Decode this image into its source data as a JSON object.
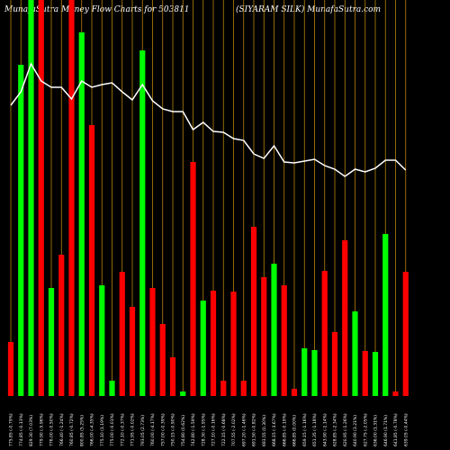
{
  "chart_data": {
    "type": "bar",
    "title_left": "MunafaSutra  Money Flow  Charts for 503811",
    "title_right": "(SIYARAM SILK) MunafaSutra.com",
    "colors": {
      "background": "#000000",
      "up": "#00ff00",
      "down": "#ff0000",
      "grid": "#b8860b",
      "line": "#ffffff"
    },
    "bars": [
      {
        "label": "775.85 (-0.79%)",
        "color": "down",
        "value": 60
      },
      {
        "label": "774.85 (-0.13%)",
        "color": "up",
        "value": 368
      },
      {
        "label": "829.30 (7.03%)",
        "color": "up",
        "value": 440
      },
      {
        "label": "779.90 (-5.96%)",
        "color": "down",
        "value": 440
      },
      {
        "label": "776.00 (-0.50%)",
        "color": "up",
        "value": 120
      },
      {
        "label": "766.40 (-1.24%)",
        "color": "down",
        "value": 157
      },
      {
        "label": "760.85 (-0.72%)",
        "color": "down",
        "value": 440
      },
      {
        "label": "800.85 (5.25%)",
        "color": "up",
        "value": 404
      },
      {
        "label": "766.00 (-4.35%)",
        "color": "down",
        "value": 301
      },
      {
        "label": "775.10 (1.19%)",
        "color": "up",
        "value": 123
      },
      {
        "label": "775.00 (-0.01%)",
        "color": "up",
        "value": 17
      },
      {
        "label": "772.10 (-0.37%)",
        "color": "down",
        "value": 138
      },
      {
        "label": "771.95 (-0.02%)",
        "color": "down",
        "value": 99
      },
      {
        "label": "793.05 (2.73%)",
        "color": "up",
        "value": 384
      },
      {
        "label": "760.00 (-4.17%)",
        "color": "down",
        "value": 120
      },
      {
        "label": "757.00 (-0.39%)",
        "color": "down",
        "value": 80
      },
      {
        "label": "750.15 (-0.90%)",
        "color": "down",
        "value": 43
      },
      {
        "label": "754.80 (0.62%)",
        "color": "up",
        "value": 5
      },
      {
        "label": "742.80 (-1.59%)",
        "color": "down",
        "value": 260
      },
      {
        "label": "728.30 (-1.95%)",
        "color": "up",
        "value": 106
      },
      {
        "label": "727.10 (-0.16%)",
        "color": "down",
        "value": 117
      },
      {
        "label": "722.15 (-0.68%)",
        "color": "down",
        "value": 17
      },
      {
        "label": "707.55 (-2.02%)",
        "color": "down",
        "value": 116
      },
      {
        "label": "697.20 (-1.46%)",
        "color": "down",
        "value": 17
      },
      {
        "label": "691.50 (-0.82%)",
        "color": "down",
        "value": 188
      },
      {
        "label": "693.55 (0.30%)",
        "color": "down",
        "value": 132
      },
      {
        "label": "668.15 (-3.67%)",
        "color": "up",
        "value": 147
      },
      {
        "label": "666.85 (-0.19%)",
        "color": "down",
        "value": 123
      },
      {
        "label": "666.85 (0.00%)",
        "color": "down",
        "value": 8
      },
      {
        "label": "659.15 (-1.16%)",
        "color": "up",
        "value": 53
      },
      {
        "label": "651.35 (-1.18%)",
        "color": "up",
        "value": 51
      },
      {
        "label": "643.90 (-1.14%)",
        "color": "down",
        "value": 139
      },
      {
        "label": "628.85 (-2.34%)",
        "color": "down",
        "value": 71
      },
      {
        "label": "620.95 (-1.26%)",
        "color": "down",
        "value": 173
      },
      {
        "label": "640.90 (3.21%)",
        "color": "up",
        "value": 94
      },
      {
        "label": "627.75 (-2.05%)",
        "color": "down",
        "value": 50
      },
      {
        "label": "636.00 (1.31%)",
        "color": "up",
        "value": 49
      },
      {
        "label": "646.90 (1.71%)",
        "color": "up",
        "value": 180
      },
      {
        "label": "641.85 (-0.78%)",
        "color": "down",
        "value": 5
      },
      {
        "label": "639.05 (-0.44%)",
        "color": "down",
        "value": 138
      }
    ],
    "line": [
      117,
      102,
      71,
      90,
      97,
      97,
      110,
      90,
      97,
      94,
      92,
      102,
      111,
      94,
      112,
      121,
      124,
      124,
      144,
      136,
      146,
      147,
      154,
      156,
      171,
      176,
      162,
      180,
      181,
      179,
      177,
      184,
      188,
      196,
      188,
      191,
      187,
      178,
      178,
      189
    ],
    "line_range": [
      0,
      440
    ]
  }
}
